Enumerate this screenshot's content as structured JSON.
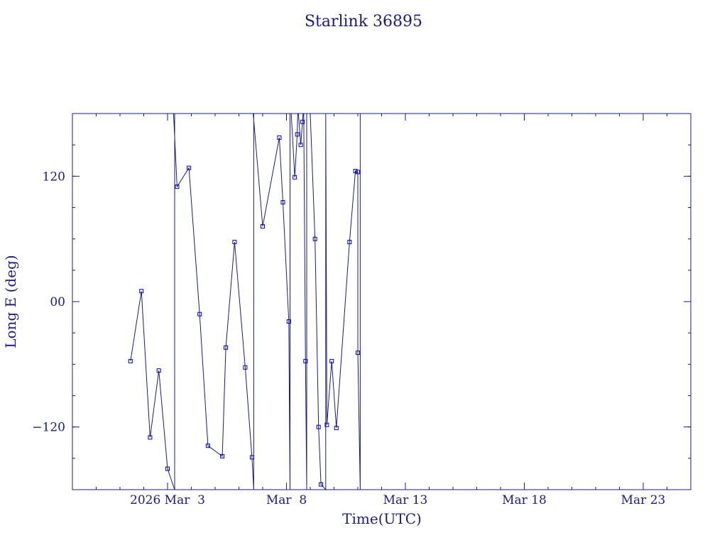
{
  "chart_data": {
    "type": "line",
    "title": "Starlink 36895",
    "xlabel": "Time(UTC)",
    "ylabel": "Long E (deg)",
    "x_range": [
      "2026-02-27T00:00",
      "2026-03-25T00:00"
    ],
    "ylim": [
      -180,
      180
    ],
    "x_ticks": [
      {
        "x": "2026-03-03",
        "label": "2026 Mar  3"
      },
      {
        "x": "2026-03-08",
        "label": "Mar  8"
      },
      {
        "x": "2026-03-13",
        "label": "Mar 13"
      },
      {
        "x": "2026-03-18",
        "label": "Mar 18"
      },
      {
        "x": "2026-03-23",
        "label": "Mar 23"
      }
    ],
    "y_ticks": [
      {
        "y": 120,
        "label": "120"
      },
      {
        "y": 0,
        "label": "00"
      },
      {
        "y": -120,
        "label": "−120"
      }
    ],
    "grid": false,
    "colors": {
      "line": "#1a1a8c",
      "marker": "#0000cc",
      "frame": "#1a1a8c",
      "text": "#1a1a8c"
    },
    "series": [
      {
        "values": [
          {
            "x": "2026-03-01T10:36",
            "y": -57
          },
          {
            "x": "2026-03-01T21:36",
            "y": 10
          },
          {
            "x": "2026-03-02T06:24",
            "y": -130
          },
          {
            "x": "2026-03-02T15:12",
            "y": -66
          },
          {
            "x": "2026-03-03T00:00",
            "y": -160
          },
          {
            "x": "2026-03-03T07:12",
            "y": -180
          },
          {
            "x": "2026-03-03T07:12",
            "y": 180
          },
          {
            "x": "2026-03-03T06:00",
            "y": 180
          },
          {
            "x": "2026-03-03T09:36",
            "y": 110
          },
          {
            "x": "2026-03-03T21:36",
            "y": 128
          },
          {
            "x": "2026-03-04T08:24",
            "y": -12
          },
          {
            "x": "2026-03-04T16:48",
            "y": -138
          },
          {
            "x": "2026-03-05T07:12",
            "y": -148
          },
          {
            "x": "2026-03-05T10:48",
            "y": -44
          },
          {
            "x": "2026-03-05T19:36",
            "y": 57
          },
          {
            "x": "2026-03-06T06:24",
            "y": -63
          },
          {
            "x": "2026-03-06T13:12",
            "y": -149
          },
          {
            "x": "2026-03-06T15:00",
            "y": -180
          },
          {
            "x": "2026-03-06T15:00",
            "y": 180
          },
          {
            "x": "2026-03-06T14:24",
            "y": 180
          },
          {
            "x": "2026-03-07T00:00",
            "y": 72
          },
          {
            "x": "2026-03-07T16:48",
            "y": 157
          },
          {
            "x": "2026-03-07T20:24",
            "y": 95
          },
          {
            "x": "2026-03-08T02:24",
            "y": -19
          },
          {
            "x": "2026-03-08T03:36",
            "y": -180
          },
          {
            "x": "2026-03-08T03:36",
            "y": 180
          },
          {
            "x": "2026-03-08T04:48",
            "y": 180
          },
          {
            "x": "2026-03-08T08:24",
            "y": 119
          },
          {
            "x": "2026-03-08T10:48",
            "y": 160
          },
          {
            "x": "2026-03-08T11:24",
            "y": 180
          },
          {
            "x": "2026-03-08T12:00",
            "y": 180
          },
          {
            "x": "2026-03-08T14:24",
            "y": 150
          },
          {
            "x": "2026-03-08T16:12",
            "y": 172
          },
          {
            "x": "2026-03-08T16:48",
            "y": 180
          },
          {
            "x": "2026-03-08T17:24",
            "y": 180
          },
          {
            "x": "2026-03-08T19:12",
            "y": -57
          },
          {
            "x": "2026-03-08T20:24",
            "y": -180
          },
          {
            "x": "2026-03-08T20:24",
            "y": 180
          },
          {
            "x": "2026-03-09T00:00",
            "y": 180
          },
          {
            "x": "2026-03-09T04:48",
            "y": 60
          },
          {
            "x": "2026-03-09T08:24",
            "y": -120
          },
          {
            "x": "2026-03-09T10:48",
            "y": -175
          },
          {
            "x": "2026-03-09T15:36",
            "y": -180
          },
          {
            "x": "2026-03-09T15:36",
            "y": 180
          },
          {
            "x": "2026-03-09T15:36",
            "y": 180
          },
          {
            "x": "2026-03-09T16:48",
            "y": -118
          },
          {
            "x": "2026-03-09T21:36",
            "y": -57
          },
          {
            "x": "2026-03-10T02:24",
            "y": -121
          },
          {
            "x": "2026-03-10T15:36",
            "y": 57
          },
          {
            "x": "2026-03-10T21:36",
            "y": 125
          },
          {
            "x": "2026-03-11T00:00",
            "y": 124
          },
          {
            "x": "2026-03-11T00:00",
            "y": -49
          },
          {
            "x": "2026-03-11T02:24",
            "y": -180
          },
          {
            "x": "2026-03-11T02:24",
            "y": 180
          }
        ]
      }
    ]
  }
}
